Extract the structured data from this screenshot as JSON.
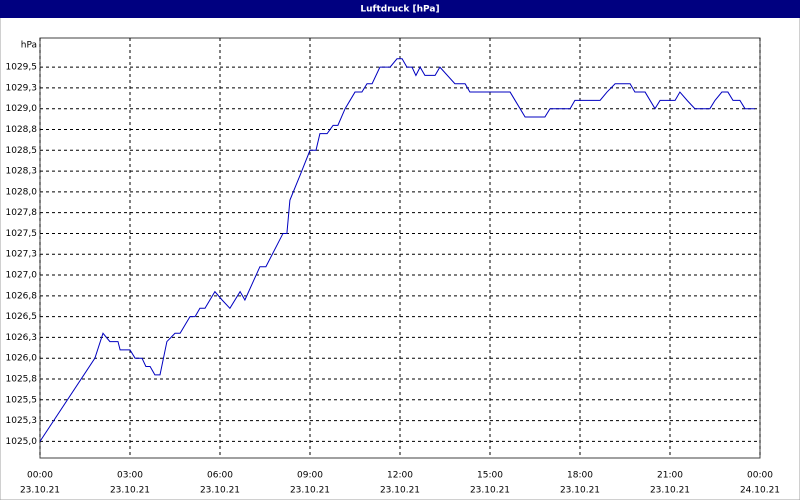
{
  "chart_data": {
    "type": "line",
    "title": "Luftdruck [hPa]",
    "y_unit": "hPa",
    "x": [
      0,
      1.83,
      2.1,
      2.33,
      2.6,
      2.67,
      3.0,
      3.17,
      3.4,
      3.53,
      3.67,
      3.83,
      4.0,
      4.23,
      4.5,
      4.67,
      5.0,
      5.17,
      5.33,
      5.5,
      5.83,
      6.07,
      6.33,
      6.67,
      6.83,
      7.33,
      7.53,
      8.1,
      8.23,
      8.33,
      8.67,
      9.0,
      9.2,
      9.33,
      9.57,
      9.77,
      9.93,
      10.17,
      10.5,
      10.73,
      10.9,
      11.07,
      11.33,
      11.67,
      11.9,
      12.07,
      12.23,
      12.4,
      12.53,
      12.67,
      12.83,
      13.17,
      13.33,
      13.83,
      14.17,
      14.33,
      15.67,
      16.17,
      16.83,
      17.0,
      17.67,
      17.83,
      18.67,
      18.9,
      19.17,
      19.67,
      19.83,
      20.17,
      20.5,
      20.67,
      21.17,
      21.33,
      21.57,
      21.83,
      22.33,
      22.5,
      22.73,
      22.93,
      23.1,
      23.33,
      23.5,
      23.83
    ],
    "series": [
      {
        "name": "Luftdruck",
        "color": "#0000c0",
        "values": [
          1025.0,
          1026.0,
          1026.3,
          1026.2,
          1026.2,
          1026.1,
          1026.1,
          1026.0,
          1026.0,
          1025.9,
          1025.9,
          1025.8,
          1025.8,
          1026.2,
          1026.3,
          1026.3,
          1026.5,
          1026.5,
          1026.6,
          1026.6,
          1026.8,
          1026.7,
          1026.6,
          1026.8,
          1026.7,
          1027.1,
          1027.1,
          1027.5,
          1027.5,
          1027.9,
          1028.2,
          1028.5,
          1028.5,
          1028.7,
          1028.7,
          1028.8,
          1028.8,
          1029.0,
          1029.2,
          1029.2,
          1029.3,
          1029.3,
          1029.5,
          1029.5,
          1029.6,
          1029.6,
          1029.5,
          1029.5,
          1029.4,
          1029.5,
          1029.4,
          1029.4,
          1029.5,
          1029.3,
          1029.3,
          1029.2,
          1029.2,
          1028.9,
          1028.9,
          1029.0,
          1029.0,
          1029.1,
          1029.1,
          1029.2,
          1029.3,
          1029.3,
          1029.2,
          1029.2,
          1029.0,
          1029.1,
          1029.1,
          1029.2,
          1029.1,
          1029.0,
          1029.0,
          1029.1,
          1029.2,
          1029.2,
          1029.1,
          1029.1,
          1029.0,
          1029.0
        ]
      }
    ],
    "xlim": [
      0,
      24
    ],
    "xticks": [
      {
        "value": 0,
        "label": "00:00"
      },
      {
        "value": 3,
        "label": "03:00"
      },
      {
        "value": 6,
        "label": "06:00"
      },
      {
        "value": 9,
        "label": "09:00"
      },
      {
        "value": 12,
        "label": "12:00"
      },
      {
        "value": 15,
        "label": "15:00"
      },
      {
        "value": 18,
        "label": "18:00"
      },
      {
        "value": 21,
        "label": "21:00"
      },
      {
        "value": 24,
        "label": "00:00"
      }
    ],
    "xtick_dates": [
      "23.10.21",
      "23.10.21",
      "23.10.21",
      "23.10.21",
      "23.10.21",
      "23.10.21",
      "23.10.21",
      "23.10.21",
      "24.10.21"
    ],
    "ylim": [
      1024.8,
      1029.85
    ],
    "yticks": [
      {
        "value": 1025.0,
        "label": "1025,0"
      },
      {
        "value": 1025.25,
        "label": "1025,3"
      },
      {
        "value": 1025.5,
        "label": "1025,5"
      },
      {
        "value": 1025.75,
        "label": "1025,8"
      },
      {
        "value": 1026.0,
        "label": "1026,0"
      },
      {
        "value": 1026.25,
        "label": "1026,3"
      },
      {
        "value": 1026.5,
        "label": "1026,5"
      },
      {
        "value": 1026.75,
        "label": "1026,8"
      },
      {
        "value": 1027.0,
        "label": "1027,0"
      },
      {
        "value": 1027.25,
        "label": "1027,3"
      },
      {
        "value": 1027.5,
        "label": "1027,5"
      },
      {
        "value": 1027.75,
        "label": "1027,8"
      },
      {
        "value": 1028.0,
        "label": "1028,0"
      },
      {
        "value": 1028.25,
        "label": "1028,3"
      },
      {
        "value": 1028.5,
        "label": "1028,5"
      },
      {
        "value": 1028.75,
        "label": "1028,8"
      },
      {
        "value": 1029.0,
        "label": "1029,0"
      },
      {
        "value": 1029.25,
        "label": "1029,3"
      },
      {
        "value": 1029.5,
        "label": "1029,5"
      }
    ],
    "grid": true
  }
}
